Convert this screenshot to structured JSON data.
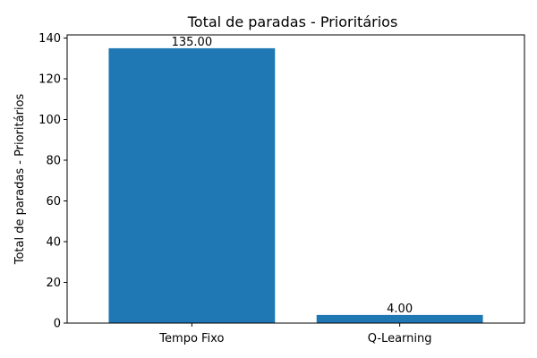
{
  "chart_data": {
    "type": "bar",
    "title": "Total de paradas - Prioritários",
    "xlabel": "",
    "ylabel": "Total de paradas - Prioritários",
    "categories": [
      "Tempo Fixo",
      "Q-Learning"
    ],
    "values": [
      135.0,
      4.0
    ],
    "value_labels": [
      "135.00",
      "4.00"
    ],
    "ylim": [
      0,
      141.55
    ],
    "yticks": [
      0,
      20,
      40,
      60,
      80,
      100,
      120,
      140
    ],
    "ytick_labels": [
      "0",
      "20",
      "40",
      "60",
      "80",
      "100",
      "120",
      "140"
    ],
    "bar_color": "#1f77b4",
    "grid": false,
    "legend": "none"
  }
}
